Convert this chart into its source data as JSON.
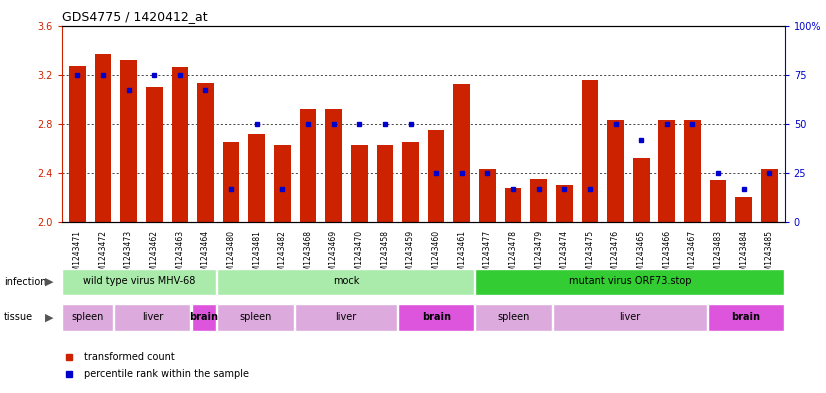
{
  "title": "GDS4775 / 1420412_at",
  "samples": [
    "GSM1243471",
    "GSM1243472",
    "GSM1243473",
    "GSM1243462",
    "GSM1243463",
    "GSM1243464",
    "GSM1243480",
    "GSM1243481",
    "GSM1243482",
    "GSM1243468",
    "GSM1243469",
    "GSM1243470",
    "GSM1243458",
    "GSM1243459",
    "GSM1243460",
    "GSM1243461",
    "GSM1243477",
    "GSM1243478",
    "GSM1243479",
    "GSM1243474",
    "GSM1243475",
    "GSM1243476",
    "GSM1243465",
    "GSM1243466",
    "GSM1243467",
    "GSM1243483",
    "GSM1243484",
    "GSM1243485"
  ],
  "bar_values": [
    3.27,
    3.37,
    3.32,
    3.1,
    3.26,
    3.13,
    2.65,
    2.72,
    2.63,
    2.92,
    2.92,
    2.63,
    2.63,
    2.65,
    2.75,
    3.12,
    2.43,
    2.28,
    2.35,
    2.3,
    3.16,
    2.83,
    2.52,
    2.83,
    2.83,
    2.34,
    2.2,
    2.43
  ],
  "percentile_values": [
    75,
    75,
    67,
    75,
    75,
    67,
    17,
    50,
    17,
    50,
    50,
    50,
    50,
    50,
    25,
    25,
    25,
    17,
    17,
    17,
    17,
    50,
    42,
    50,
    50,
    25,
    17,
    25
  ],
  "bar_color": "#cc2200",
  "dot_color": "#0000cc",
  "ymin": 2.0,
  "ymax": 3.6,
  "y2min": 0,
  "y2max": 100,
  "yticks": [
    2.0,
    2.4,
    2.8,
    3.2,
    3.6
  ],
  "y2ticks": [
    0,
    25,
    50,
    75,
    100
  ],
  "y2ticklabels": [
    "0",
    "25",
    "50",
    "75",
    "100%"
  ],
  "infection_groups": [
    {
      "label": "wild type virus MHV-68",
      "start": 0,
      "end": 6,
      "color": "#aaeaaa"
    },
    {
      "label": "mock",
      "start": 6,
      "end": 16,
      "color": "#aaeaaa"
    },
    {
      "label": "mutant virus ORF73.stop",
      "start": 16,
      "end": 28,
      "color": "#33cc33"
    }
  ],
  "tissue_groups": [
    {
      "label": "spleen",
      "start": 0,
      "end": 2,
      "color": "#ddaadd"
    },
    {
      "label": "liver",
      "start": 2,
      "end": 5,
      "color": "#ddaadd"
    },
    {
      "label": "brain",
      "start": 5,
      "end": 6,
      "color": "#dd55dd"
    },
    {
      "label": "spleen",
      "start": 6,
      "end": 9,
      "color": "#ddaadd"
    },
    {
      "label": "liver",
      "start": 9,
      "end": 13,
      "color": "#ddaadd"
    },
    {
      "label": "brain",
      "start": 13,
      "end": 16,
      "color": "#dd55dd"
    },
    {
      "label": "spleen",
      "start": 16,
      "end": 19,
      "color": "#ddaadd"
    },
    {
      "label": "liver",
      "start": 19,
      "end": 25,
      "color": "#ddaadd"
    },
    {
      "label": "brain",
      "start": 25,
      "end": 28,
      "color": "#dd55dd"
    }
  ]
}
